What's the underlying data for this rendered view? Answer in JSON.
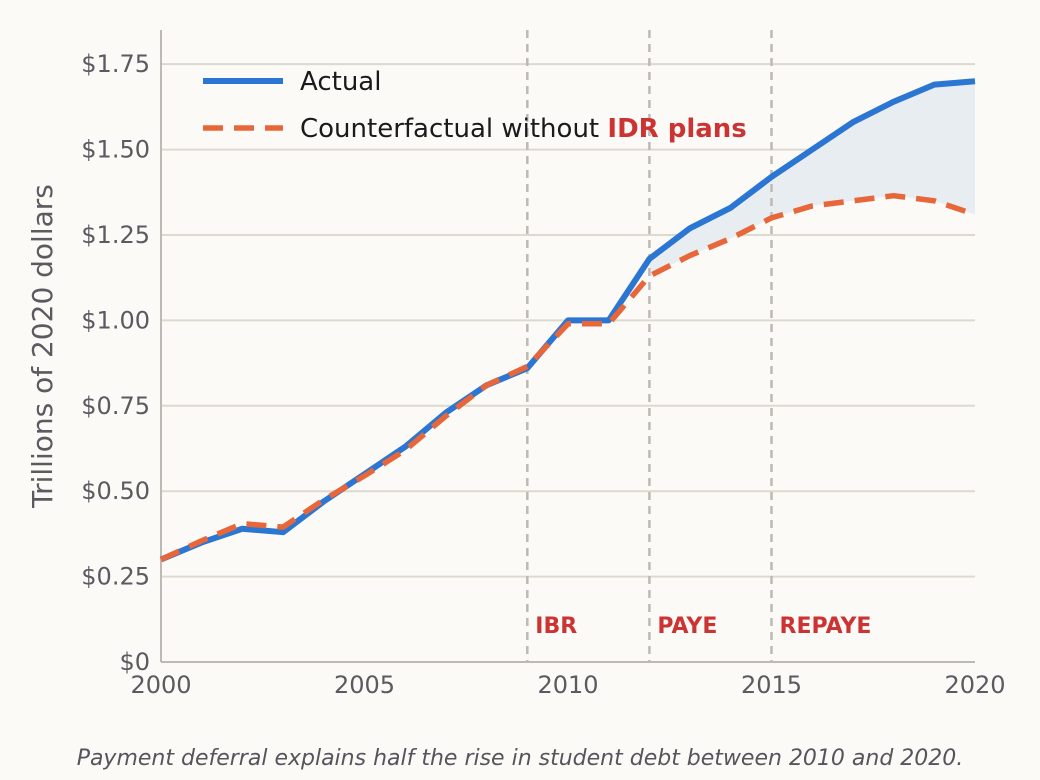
{
  "chart_data": {
    "type": "line",
    "ylabel": "Trillions of 2020 dollars",
    "xlim": [
      2000,
      2020
    ],
    "ylim": [
      0,
      1.85
    ],
    "x_ticks": [
      2000,
      2005,
      2010,
      2015,
      2020
    ],
    "y_ticks": [
      0,
      0.25,
      0.5,
      0.75,
      1.0,
      1.25,
      1.5,
      1.75
    ],
    "y_tick_labels": [
      "$0",
      "$0.25",
      "$0.50",
      "$0.75",
      "$1.00",
      "$1.25",
      "$1.50",
      "$1.75"
    ],
    "grid": "horizontal",
    "legend_position": "top-left",
    "legend": {
      "actual": "Actual",
      "counterfactual_prefix": "Counterfactual without ",
      "counterfactual_highlight": "IDR plans"
    },
    "series": [
      {
        "name": "Actual",
        "color": "#2a76d2",
        "style": "solid",
        "x": [
          2000,
          2001,
          2002,
          2003,
          2004,
          2005,
          2006,
          2007,
          2008,
          2009,
          2010,
          2011,
          2012,
          2013,
          2014,
          2015,
          2016,
          2017,
          2018,
          2019,
          2020
        ],
        "values": [
          0.3,
          0.35,
          0.39,
          0.38,
          0.47,
          0.55,
          0.63,
          0.73,
          0.81,
          0.86,
          1.0,
          1.0,
          1.18,
          1.27,
          1.33,
          1.42,
          1.5,
          1.58,
          1.64,
          1.69,
          1.7
        ]
      },
      {
        "name": "Counterfactual without IDR plans",
        "color": "#e8673a",
        "style": "dashed",
        "x": [
          2000,
          2001,
          2002,
          2003,
          2004,
          2005,
          2006,
          2007,
          2008,
          2009,
          2010,
          2011,
          2012,
          2013,
          2014,
          2015,
          2016,
          2017,
          2018,
          2019,
          2020
        ],
        "values": [
          0.3,
          0.355,
          0.405,
          0.395,
          0.475,
          0.545,
          0.62,
          0.72,
          0.81,
          0.865,
          0.99,
          0.99,
          1.13,
          1.19,
          1.24,
          1.3,
          1.335,
          1.35,
          1.365,
          1.35,
          1.31
        ]
      }
    ],
    "shaded_region": {
      "between": [
        "Actual",
        "Counterfactual without IDR plans"
      ],
      "from_x": 2012,
      "to_x": 2020,
      "color": "#e8edf2"
    },
    "events": [
      {
        "x": 2009,
        "label": "IBR"
      },
      {
        "x": 2012,
        "label": "PAYE"
      },
      {
        "x": 2015,
        "label": "REPAYE"
      }
    ],
    "caption": "Payment deferral explains half the rise in student debt between 2010 and 2020."
  }
}
